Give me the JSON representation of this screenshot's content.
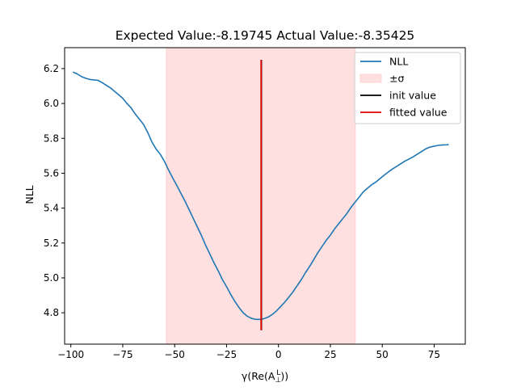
{
  "chart_data": {
    "type": "line",
    "title": "Expected Value:-8.19745 Actual Value:-8.35425",
    "xlabel_prefix": "γ(Re(A",
    "xlabel_sub": "⊥",
    "xlabel_sup": "L",
    "xlabel_suffix": "))",
    "ylabel": "NLL",
    "xlim": [
      -103,
      90
    ],
    "ylim": [
      4.62,
      6.32
    ],
    "x_ticks": [
      -100,
      -75,
      -50,
      -25,
      0,
      25,
      50,
      75
    ],
    "x_tick_labels": [
      "−100",
      "−75",
      "−50",
      "−25",
      "0",
      "25",
      "50",
      "75"
    ],
    "y_ticks": [
      4.8,
      5.0,
      5.2,
      5.4,
      5.6,
      5.8,
      6.0,
      6.2
    ],
    "y_tick_labels": [
      "4.8",
      "5.0",
      "5.2",
      "5.4",
      "5.6",
      "5.8",
      "6.0",
      "6.2"
    ],
    "grid": false,
    "legend_position": "top-right",
    "legend": [
      {
        "label": "NLL",
        "kind": "line",
        "color": "#1f77b4"
      },
      {
        "label": "±σ",
        "kind": "patch",
        "color": "#ffe0e0"
      },
      {
        "label": "init value",
        "kind": "line",
        "color": "#000000"
      },
      {
        "label": "fitted value",
        "kind": "line",
        "color": "#e00000"
      }
    ],
    "band": {
      "x_low": -54,
      "x_high": 37,
      "color": "#ffe0e0"
    },
    "init_value": {
      "x": -8.19745,
      "y_low": 4.7,
      "y_high": 6.25,
      "color": "#000000"
    },
    "fitted_value": {
      "x": -8.35425,
      "y_low": 4.7,
      "y_high": 6.25,
      "color": "#e00000"
    },
    "series": [
      {
        "name": "NLL",
        "color": "#1f77b4",
        "x": [
          -99,
          -97,
          -95,
          -93,
          -91,
          -89,
          -87,
          -85,
          -83,
          -81,
          -79,
          -77,
          -75,
          -73,
          -71,
          -69,
          -67,
          -65,
          -63,
          -61,
          -59,
          -57,
          -55,
          -53,
          -51,
          -49,
          -47,
          -45,
          -43,
          -41,
          -39,
          -37,
          -35,
          -33,
          -31,
          -29,
          -27,
          -25,
          -23,
          -21,
          -19,
          -17,
          -15,
          -13,
          -11,
          -9,
          -7,
          -5,
          -3,
          -1,
          1,
          3,
          5,
          7,
          9,
          11,
          13,
          15,
          17,
          19,
          21,
          23,
          25,
          27,
          29,
          31,
          33,
          35,
          37,
          39,
          41,
          43,
          45,
          47,
          49,
          51,
          53,
          55,
          57,
          59,
          61,
          63,
          65,
          67,
          69,
          71,
          73,
          75,
          77,
          79,
          81,
          82
        ],
        "y": [
          6.18,
          6.17,
          6.155,
          6.145,
          6.138,
          6.135,
          6.133,
          6.12,
          6.105,
          6.09,
          6.07,
          6.05,
          6.03,
          6.0,
          5.975,
          5.94,
          5.91,
          5.88,
          5.835,
          5.78,
          5.74,
          5.71,
          5.67,
          5.62,
          5.575,
          5.53,
          5.485,
          5.44,
          5.39,
          5.34,
          5.29,
          5.24,
          5.185,
          5.135,
          5.085,
          5.04,
          4.99,
          4.95,
          4.905,
          4.865,
          4.83,
          4.8,
          4.78,
          4.768,
          4.762,
          4.762,
          4.766,
          4.775,
          4.79,
          4.81,
          4.835,
          4.86,
          4.89,
          4.92,
          4.955,
          4.99,
          5.03,
          5.065,
          5.105,
          5.145,
          5.18,
          5.215,
          5.245,
          5.28,
          5.31,
          5.34,
          5.37,
          5.405,
          5.435,
          5.465,
          5.495,
          5.515,
          5.535,
          5.55,
          5.57,
          5.59,
          5.608,
          5.625,
          5.64,
          5.655,
          5.67,
          5.682,
          5.695,
          5.71,
          5.725,
          5.74,
          5.75,
          5.755,
          5.76,
          5.762,
          5.763,
          5.765
        ]
      }
    ]
  }
}
